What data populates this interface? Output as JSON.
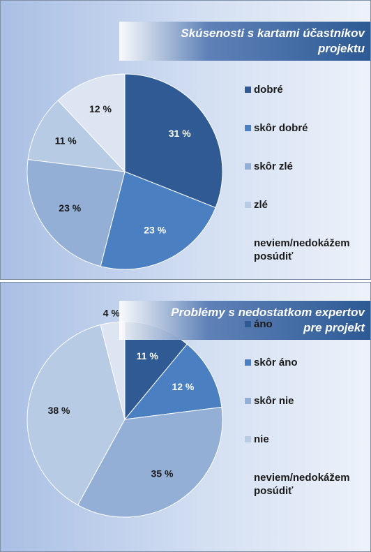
{
  "chart_data": [
    {
      "type": "pie",
      "title": "Skúsenosti s kartami účastníkov projektu",
      "categories": [
        "dobré",
        "skôr dobré",
        "skôr zlé",
        "zlé",
        "neviem/nedokážem posúdiť"
      ],
      "values": [
        31,
        23,
        23,
        11,
        12
      ],
      "value_labels": [
        "31 %",
        "23 %",
        "23 %",
        "11 %",
        "12 %"
      ],
      "colors": [
        "#2f5a93",
        "#4a7fc1",
        "#93afd5",
        "#b8cbe4",
        "#dce5f1"
      ]
    },
    {
      "type": "pie",
      "title": "Problémy s nedostatkom expertov  pre projekt",
      "categories": [
        "áno",
        "skôr áno",
        "skôr nie",
        "nie",
        "neviem/nedokážem posúdiť"
      ],
      "values": [
        11,
        12,
        35,
        38,
        4
      ],
      "value_labels": [
        "11 %",
        "12 %",
        "35 %",
        "38 %",
        "4 %"
      ],
      "colors": [
        "#2f5a93",
        "#4a7fc1",
        "#93afd5",
        "#b8cbe4",
        "#dce5f1"
      ]
    }
  ]
}
